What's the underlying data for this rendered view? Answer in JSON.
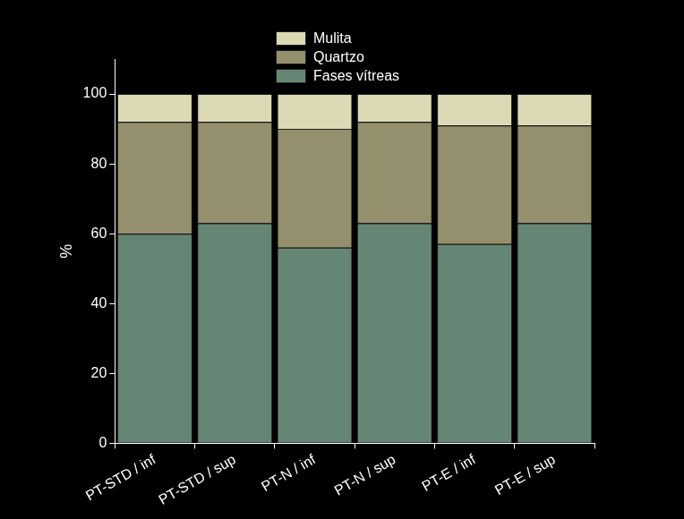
{
  "chart_data": {
    "type": "bar",
    "stacked": true,
    "legend": "top",
    "grid": false,
    "y_label": "%",
    "categories": [
      "PT-STD / inf",
      "PT-STD / sup",
      "PT-N / inf",
      "PT-N / sup",
      "PT-E / inf",
      "PT-E / sup"
    ],
    "series": [
      {
        "name": "Fases vítreas",
        "color": "#668675",
        "values": [
          60,
          63,
          56,
          63,
          57,
          63
        ]
      },
      {
        "name": "Quartzo",
        "color": "#948f6c",
        "values": [
          32,
          29,
          34,
          29,
          34,
          28
        ]
      },
      {
        "name": "Mulita",
        "color": "#dcd9b5",
        "values": [
          8,
          8,
          10,
          8,
          9,
          9
        ]
      }
    ],
    "ylim": [
      0,
      110
    ],
    "yticks": [
      0,
      20,
      40,
      60,
      80,
      100
    ]
  }
}
